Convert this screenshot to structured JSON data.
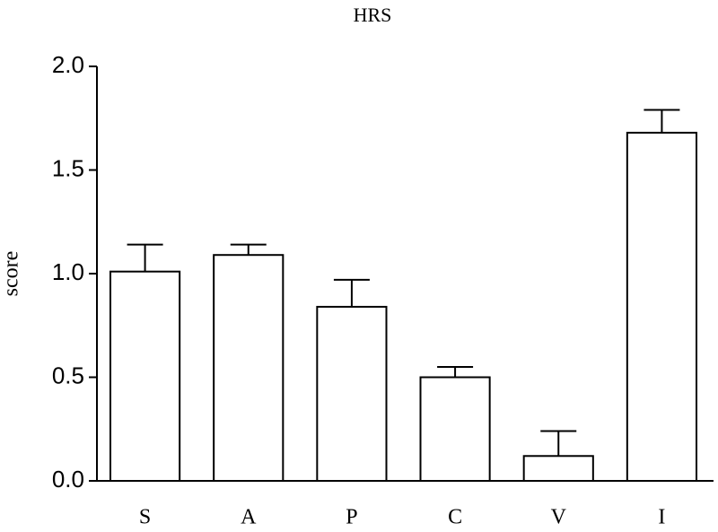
{
  "chart_data": {
    "type": "bar",
    "title": "HRS",
    "y_label": "score",
    "categories": [
      "S",
      "A",
      "P",
      "C",
      "V",
      "I"
    ],
    "values": [
      1.01,
      1.09,
      0.84,
      0.5,
      0.12,
      1.68
    ],
    "errors": [
      0.13,
      0.05,
      0.13,
      0.05,
      0.12,
      0.11
    ],
    "color": "#ffffff",
    "ylim": [
      0,
      2
    ],
    "yticks": [
      {
        "value": 0,
        "label": "0.0"
      },
      {
        "value": 0.5,
        "label": "0.5"
      },
      {
        "value": 1,
        "label": "1.0"
      },
      {
        "value": 1.5,
        "label": "1.5"
      },
      {
        "value": 2,
        "label": "2.0"
      }
    ],
    "grid": false
  }
}
